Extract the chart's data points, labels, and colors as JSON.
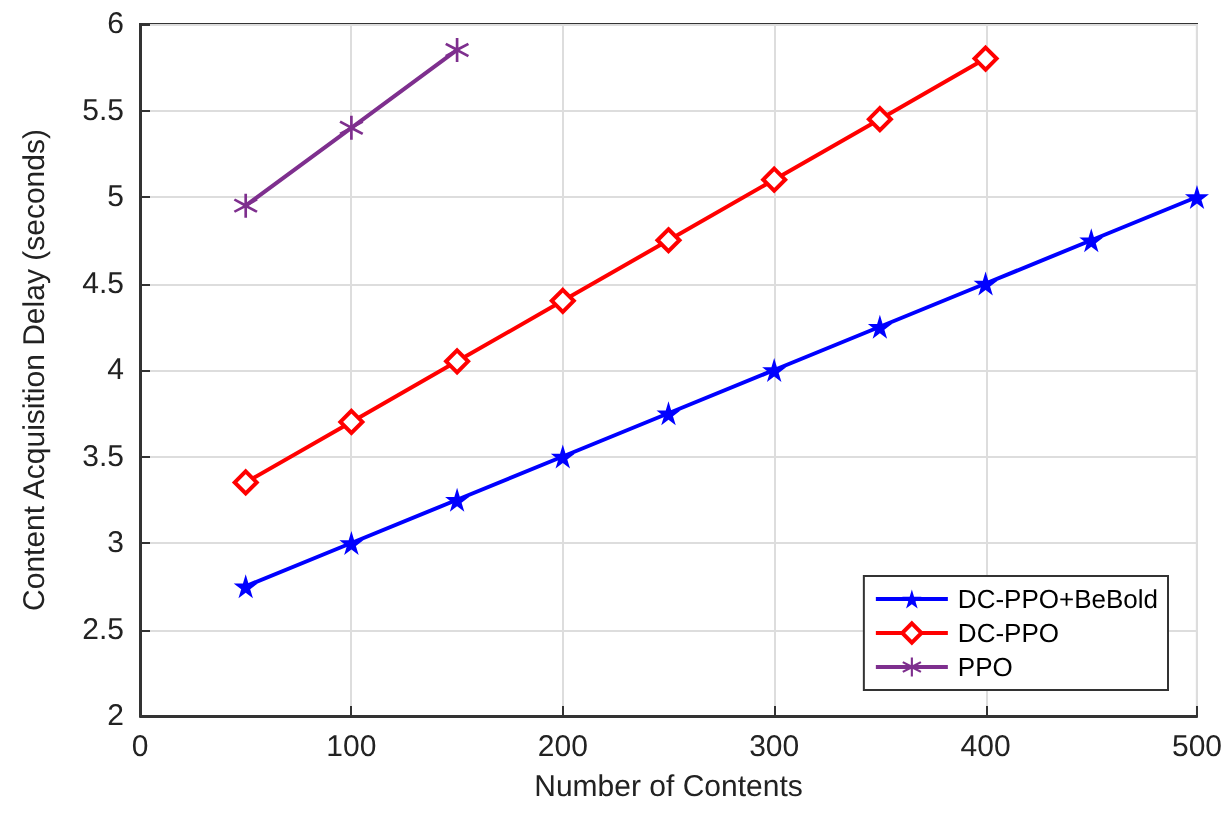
{
  "chart_data": {
    "type": "line",
    "xlabel": "Number of Contents",
    "ylabel": "Content Acquisition Delay (seconds)",
    "xlim": [
      0,
      500
    ],
    "xticks": [
      0,
      100,
      200,
      300,
      400,
      500
    ],
    "ylim": [
      2,
      6
    ],
    "yticks": [
      2,
      2.5,
      3,
      3.5,
      4,
      4.5,
      5,
      5.5,
      6
    ],
    "grid": true,
    "legend": "bottom right",
    "series": [
      {
        "name": "DC-PPO+BeBold",
        "color": "#0000ff",
        "marker": "star",
        "x": [
          50,
          100,
          150,
          200,
          250,
          300,
          350,
          400,
          450,
          500
        ],
        "values": [
          2.75,
          3.0,
          3.25,
          3.5,
          3.75,
          4.0,
          4.25,
          4.5,
          4.75,
          5.0
        ]
      },
      {
        "name": "DC-PPO",
        "color": "#ff0000",
        "marker": "diamond",
        "x": [
          50,
          100,
          150,
          200,
          250,
          300,
          350,
          400
        ],
        "values": [
          3.35,
          3.7,
          4.05,
          4.4,
          4.75,
          5.1,
          5.45,
          5.8
        ]
      },
      {
        "name": "PPO",
        "color": "#7e2f8e",
        "marker": "cross",
        "x": [
          50,
          100,
          150
        ],
        "values": [
          4.95,
          5.4,
          5.85
        ]
      }
    ]
  }
}
